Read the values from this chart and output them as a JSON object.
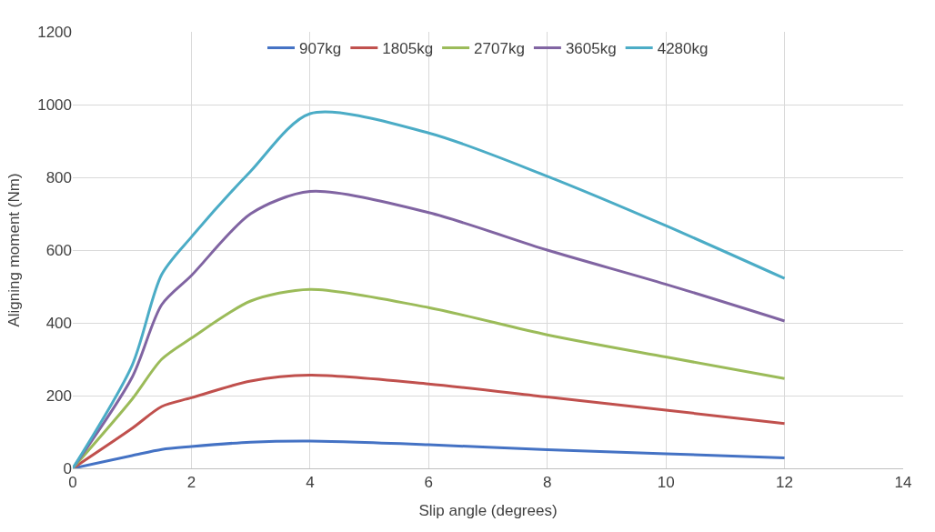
{
  "chart_data": {
    "type": "line",
    "xlabel": "Slip angle (degrees)",
    "ylabel": "Aligning moment (Nm)",
    "x": [
      0,
      1,
      1.5,
      2,
      3,
      4,
      6,
      8,
      10,
      12
    ],
    "series": [
      {
        "name": "907kg",
        "color": "#4472c4",
        "values": [
          0,
          35,
          52,
          60,
          72,
          75,
          65,
          51,
          40,
          29
        ]
      },
      {
        "name": "1805kg",
        "color": "#c0504d",
        "values": [
          0,
          110,
          170,
          194,
          240,
          256,
          232,
          196,
          160,
          123
        ]
      },
      {
        "name": "2707kg",
        "color": "#9bbb59",
        "values": [
          0,
          190,
          300,
          358,
          460,
          492,
          442,
          367,
          306,
          247
        ]
      },
      {
        "name": "3605kg",
        "color": "#8064a2",
        "values": [
          0,
          250,
          450,
          530,
          700,
          761,
          703,
          600,
          506,
          405
        ]
      },
      {
        "name": "4280kg",
        "color": "#4bacc6",
        "values": [
          0,
          283,
          533,
          636,
          817,
          975,
          922,
          803,
          667,
          522
        ]
      }
    ],
    "xlim": [
      0,
      14
    ],
    "xticks": [
      0,
      2,
      4,
      6,
      8,
      10,
      12,
      14
    ],
    "ylim": [
      0,
      1200
    ],
    "yticks": [
      0,
      200,
      400,
      600,
      800,
      1000,
      1200
    ],
    "grid": true,
    "legend": "top",
    "marker": "none",
    "line_style": "solid"
  }
}
